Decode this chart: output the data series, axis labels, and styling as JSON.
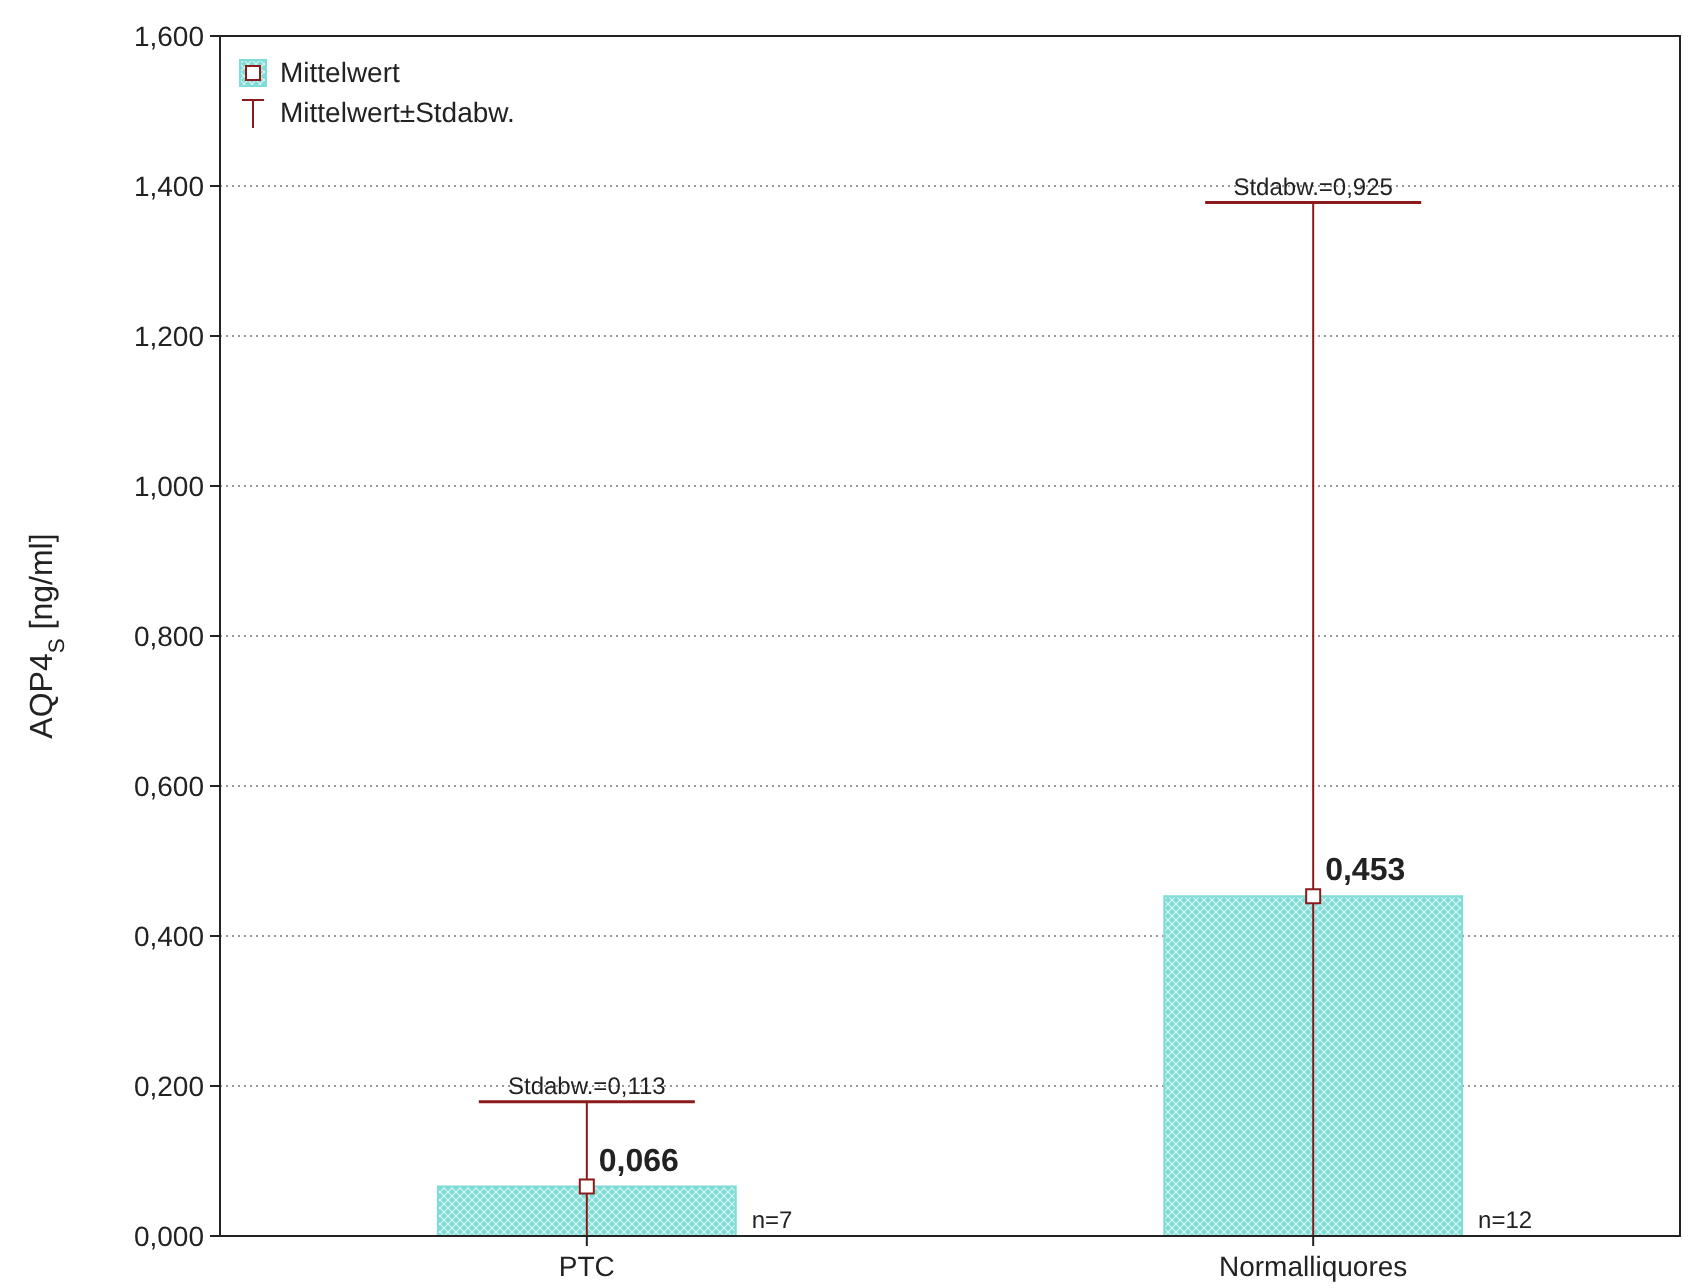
{
  "chart_data": {
    "type": "bar",
    "ylabel": "AQP4$_{S}$ [ng/ml]",
    "categories": [
      "PTC",
      "Normalliquores"
    ],
    "series": [
      {
        "name": "Mittelwert",
        "color": "#7fdcd6",
        "values": [
          0.066,
          0.453
        ],
        "errors": [
          [
            0,
            0.179
          ],
          [
            0,
            1.378
          ]
        ],
        "value_labels": [
          "0,066",
          "0,453"
        ]
      }
    ],
    "ylim": [
      0,
      1.6
    ],
    "yticks": [
      {
        "value": 0,
        "label": "0,000"
      },
      {
        "value": 0.2,
        "label": "0,200"
      },
      {
        "value": 0.4,
        "label": "0,400"
      },
      {
        "value": 0.6,
        "label": "0,600"
      },
      {
        "value": 0.8,
        "label": "0,800"
      },
      {
        "value": 1.0,
        "label": "1,000"
      },
      {
        "value": 1.2,
        "label": "1,200"
      },
      {
        "value": 1.4,
        "label": "1,400"
      },
      {
        "value": 1.6,
        "label": "1,600"
      }
    ],
    "grid": "y",
    "legend": "top left",
    "marker": "square",
    "annotations": [
      "Mittelwert±Stdabw.",
      {
        "text": "Stdabw.=0,113",
        "x": "PTC",
        "y": 0.179
      },
      {
        "text": "Stdabw.=0,925",
        "x": "Normalliquores",
        "y": 1.378
      },
      "n=7",
      "n=12"
    ]
  }
}
